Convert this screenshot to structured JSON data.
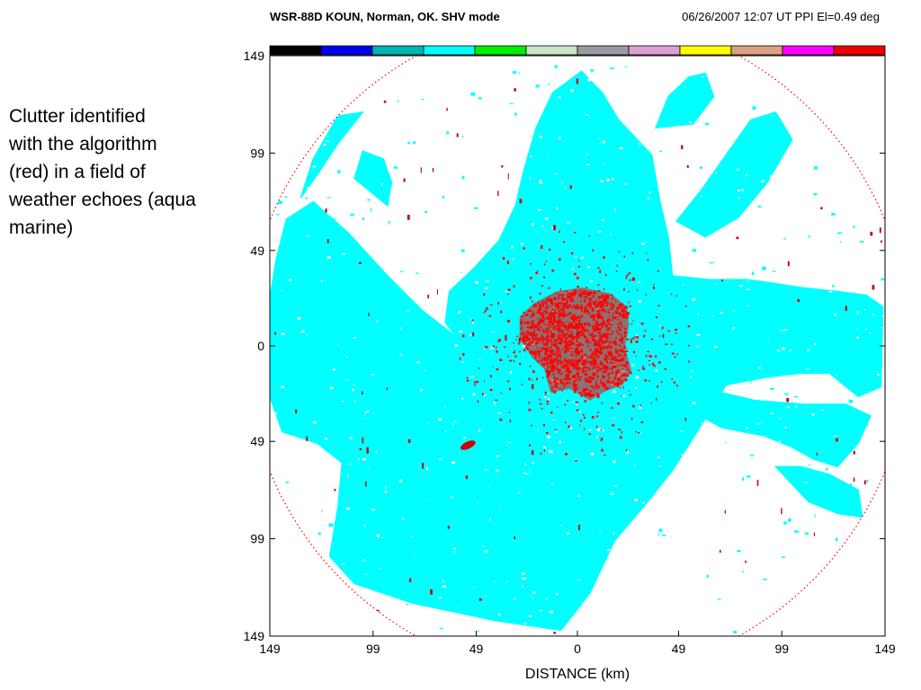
{
  "caption": {
    "lines": [
      "Clutter identified",
      "with the algorithm",
      "(red) in a field of",
      "weather echoes (aqua",
      "marine)"
    ]
  },
  "chart_data": {
    "type": "heatmap",
    "header_left": "WSR-88D  KOUN, Norman, OK.   SHV mode",
    "header_right": "06/26/2007  12:07 UT  PPI   El=0.49 deg",
    "xlabel": "DISTANCE (km)",
    "ylabel": "",
    "xlim": [
      -149,
      149
    ],
    "ylim": [
      -149,
      149
    ],
    "x_ticks": [
      {
        "value": -149,
        "label": "149"
      },
      {
        "value": -99,
        "label": "99"
      },
      {
        "value": -49,
        "label": "49"
      },
      {
        "value": 0,
        "label": "0"
      },
      {
        "value": 49,
        "label": "49"
      },
      {
        "value": 99,
        "label": "99"
      },
      {
        "value": 149,
        "label": "149"
      }
    ],
    "y_ticks": [
      {
        "value": 149,
        "label": "149"
      },
      {
        "value": 99,
        "label": "99"
      },
      {
        "value": 49,
        "label": "49"
      },
      {
        "value": 0,
        "label": "0"
      },
      {
        "value": -49,
        "label": "49"
      },
      {
        "value": -99,
        "label": "99"
      },
      {
        "value": -149,
        "label": "149"
      }
    ],
    "range_km": 149,
    "colorbar": [
      "#000000",
      "#0000ee",
      "#00b4b4",
      "#00ffff",
      "#00ee00",
      "#c8e6c8",
      "#9a9aa4",
      "#dca0d2",
      "#ffff00",
      "#dca082",
      "#ff00ff",
      "#ee0000"
    ],
    "weather_color": "#00ffff",
    "clutter_color": "#ff0000",
    "weather_regions": [
      [
        [
          -58,
          4
        ],
        [
          -75,
          18
        ],
        [
          -92,
          36
        ],
        [
          -111,
          58
        ],
        [
          -128,
          74
        ],
        [
          -141,
          65
        ],
        [
          -146,
          44
        ],
        [
          -149,
          24
        ],
        [
          -149,
          -26
        ],
        [
          -143,
          -44
        ],
        [
          -126,
          -50
        ],
        [
          -114,
          -60
        ],
        [
          -116,
          -83
        ],
        [
          -120,
          -108
        ],
        [
          -108,
          -122
        ],
        [
          -80,
          -132
        ],
        [
          -40,
          -141
        ],
        [
          -8,
          -146
        ],
        [
          6,
          -127
        ],
        [
          18,
          -100
        ],
        [
          34,
          -80
        ],
        [
          46,
          -64
        ],
        [
          58,
          -44
        ],
        [
          72,
          -20
        ],
        [
          92,
          -16
        ],
        [
          108,
          -14
        ],
        [
          122,
          -14
        ],
        [
          136,
          -26
        ],
        [
          147,
          -21
        ],
        [
          148,
          20
        ],
        [
          140,
          26
        ],
        [
          125,
          28
        ],
        [
          108,
          30
        ],
        [
          96,
          32
        ],
        [
          82,
          34
        ],
        [
          64,
          34
        ],
        [
          46,
          36
        ],
        [
          44,
          56
        ],
        [
          40,
          74
        ],
        [
          36,
          98
        ],
        [
          20,
          116
        ],
        [
          12,
          130
        ],
        [
          2,
          141
        ],
        [
          -12,
          130
        ],
        [
          -20,
          112
        ],
        [
          -26,
          90
        ],
        [
          -30,
          72
        ],
        [
          -38,
          54
        ],
        [
          -50,
          40
        ],
        [
          -62,
          28
        ],
        [
          -64,
          12
        ]
      ],
      [
        [
          48,
          64
        ],
        [
          60,
          80
        ],
        [
          72,
          98
        ],
        [
          84,
          116
        ],
        [
          96,
          120
        ],
        [
          104,
          106
        ],
        [
          92,
          84
        ],
        [
          78,
          66
        ],
        [
          62,
          56
        ]
      ],
      [
        [
          38,
          112
        ],
        [
          44,
          128
        ],
        [
          54,
          138
        ],
        [
          62,
          140
        ],
        [
          66,
          128
        ],
        [
          56,
          114
        ]
      ],
      [
        [
          -92,
          72
        ],
        [
          -108,
          86
        ],
        [
          -104,
          100
        ],
        [
          -94,
          96
        ],
        [
          -90,
          84
        ]
      ],
      [
        [
          -134,
          76
        ],
        [
          -128,
          96
        ],
        [
          -116,
          118
        ],
        [
          -104,
          120
        ],
        [
          -116,
          104
        ],
        [
          -126,
          88
        ]
      ],
      [
        [
          56,
          -34
        ],
        [
          70,
          -42
        ],
        [
          90,
          -46
        ],
        [
          104,
          -52
        ],
        [
          114,
          -58
        ],
        [
          126,
          -62
        ],
        [
          136,
          -50
        ],
        [
          142,
          -36
        ],
        [
          130,
          -30
        ],
        [
          110,
          -30
        ],
        [
          86,
          -28
        ],
        [
          70,
          -24
        ]
      ],
      [
        [
          96,
          -62
        ],
        [
          112,
          -80
        ],
        [
          126,
          -86
        ],
        [
          138,
          -88
        ],
        [
          136,
          -74
        ],
        [
          122,
          -66
        ],
        [
          108,
          -62
        ]
      ],
      [
        [
          -148,
          -2
        ],
        [
          -156,
          6
        ],
        [
          -148,
          10
        ]
      ]
    ],
    "clutter_core": [
      [
        -28,
        15
      ],
      [
        -21,
        22
      ],
      [
        -10,
        28
      ],
      [
        2,
        30
      ],
      [
        16,
        27
      ],
      [
        23,
        21
      ],
      [
        25,
        11
      ],
      [
        23,
        -1
      ],
      [
        26,
        -12
      ],
      [
        22,
        -20
      ],
      [
        14,
        -23
      ],
      [
        6,
        -28
      ],
      [
        -4,
        -22
      ],
      [
        -13,
        -24
      ],
      [
        -16,
        -12
      ],
      [
        -22,
        -6
      ],
      [
        -28,
        4
      ]
    ],
    "clutter_spot_counts": {
      "core": 900,
      "halo": 520,
      "scattered": 90
    },
    "clutter_small_cluster": {
      "center": [
        -53,
        -51
      ],
      "size_km": [
        9,
        4
      ]
    }
  }
}
